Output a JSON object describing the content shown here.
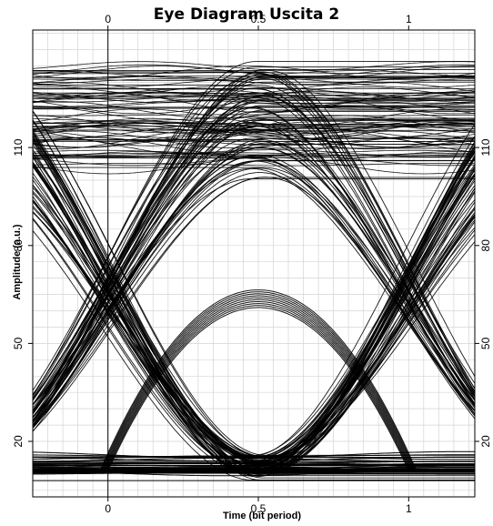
{
  "chart_data": {
    "type": "line",
    "title": "Eye Diagram Uscita 2",
    "xlabel": "Time (bit period)",
    "ylabel": "Amplitude (a.u.)",
    "xlim": [
      -0.25,
      1.22
    ],
    "ylim": [
      3,
      146
    ],
    "x_ticks": [
      0,
      0.5,
      1
    ],
    "x_tick_labels": [
      "0",
      "0.5",
      "1"
    ],
    "y_ticks": [
      20,
      50,
      80,
      110
    ],
    "y_tick_labels": [
      "20",
      "50",
      "80",
      "110"
    ],
    "grid": true,
    "mirrored_axes": true,
    "trace_color": "#000000",
    "grid_color": "#d4d4d4",
    "levels": {
      "high_band": [
        100,
        137
      ],
      "low_band": [
        8,
        16
      ],
      "floor": 11,
      "crossing_amplitude": 36,
      "crossing_times": [
        0,
        1
      ],
      "eye_opening_top": 61,
      "eye_opening_bottom": 17
    }
  }
}
